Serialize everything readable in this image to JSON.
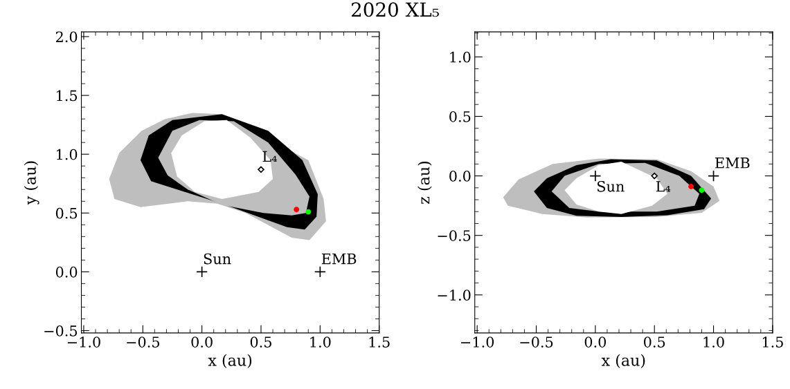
{
  "chart_data": [
    {
      "type": "area",
      "title": "2020 XL₅",
      "xlabel": "x (au)",
      "ylabel": "y (au)",
      "xlim": [
        -1.02,
        1.5
      ],
      "ylim": [
        -0.52,
        2.04
      ],
      "xticks": [
        {
          "value": -1.0,
          "label": "−1.0"
        },
        {
          "value": -0.5,
          "label": "−0.5"
        },
        {
          "value": 0.0,
          "label": "0.0"
        },
        {
          "value": 0.5,
          "label": "0.5"
        },
        {
          "value": 1.0,
          "label": "1.0"
        },
        {
          "value": 1.5,
          "label": "1.5"
        }
      ],
      "yticks": [
        {
          "value": -0.5,
          "label": "−0.5"
        },
        {
          "value": 0.0,
          "label": "0.0"
        },
        {
          "value": 0.5,
          "label": "0.5"
        },
        {
          "value": 1.0,
          "label": "1.0"
        },
        {
          "value": 1.5,
          "label": "1.5"
        },
        {
          "value": 2.0,
          "label": "2.0"
        }
      ],
      "grid": false,
      "series": [
        {
          "color": "#bebebe",
          "x": [
            -0.785,
            -0.7,
            -0.51,
            -0.31,
            -0.08,
            0.17,
            0.9,
            1.03,
            1.05,
            0.91,
            0.76,
            0.37,
            0.13,
            -0.12,
            -0.52,
            -0.74
          ],
          "values": [
            0.79,
            1.01,
            1.2,
            1.3,
            1.35,
            1.34,
            0.95,
            0.62,
            0.43,
            0.27,
            0.29,
            0.5,
            0.58,
            0.6,
            0.55,
            0.62
          ]
        },
        {
          "color": "#000000",
          "x": [
            -0.52,
            -0.45,
            -0.25,
            0.17,
            0.56,
            0.85,
            0.98,
            0.97,
            0.87,
            0.72,
            0.17,
            -0.21,
            -0.43
          ],
          "values": [
            0.95,
            1.16,
            1.29,
            1.34,
            1.2,
            0.95,
            0.66,
            0.47,
            0.36,
            0.38,
            0.58,
            0.7,
            0.77
          ]
        },
        {
          "color": "#bebebe",
          "x": [
            -0.37,
            -0.25,
            -0.02,
            0.27,
            0.56,
            0.79,
            0.91,
            0.88,
            0.76,
            0.52,
            0.17,
            -0.12,
            -0.29
          ],
          "values": [
            0.97,
            1.2,
            1.29,
            1.28,
            1.1,
            0.83,
            0.64,
            0.5,
            0.48,
            0.5,
            0.57,
            0.7,
            0.82
          ]
        },
        {
          "color": "#ffffff",
          "x": [
            -0.26,
            -0.17,
            0.02,
            0.21,
            0.41,
            0.58,
            0.6,
            0.48,
            0.17,
            -0.06,
            -0.21
          ],
          "values": [
            1.01,
            1.16,
            1.28,
            1.29,
            1.14,
            0.95,
            0.79,
            0.68,
            0.62,
            0.68,
            0.81
          ]
        },
        {
          "type": "scatter",
          "marker": "cross",
          "color": "#000000",
          "x": [
            0.0
          ],
          "values": [
            0.0
          ]
        },
        {
          "type": "scatter",
          "marker": "cross",
          "color": "#000000",
          "x": [
            1.0
          ],
          "values": [
            0.0
          ]
        },
        {
          "type": "scatter",
          "marker": "diamond",
          "color": "#000000",
          "x": [
            0.5
          ],
          "values": [
            0.87
          ]
        },
        {
          "type": "scatter",
          "marker": "circle",
          "color": "#ff0000",
          "x": [
            0.8
          ],
          "values": [
            0.53
          ]
        },
        {
          "type": "scatter",
          "marker": "circle",
          "color": "#00ff00",
          "x": [
            0.9
          ],
          "values": [
            0.51
          ]
        }
      ],
      "annotations": [
        {
          "text": "Sun",
          "x": 0.0,
          "y": 0.0
        },
        {
          "text": "EMB",
          "x": 1.0,
          "y": 0.0
        },
        {
          "text": "L₄",
          "x": 0.5,
          "y": 0.87
        }
      ]
    },
    {
      "type": "area",
      "xlabel": "x (au)",
      "ylabel": "z (au)",
      "xlim": [
        -1.02,
        1.5
      ],
      "ylim": [
        -1.32,
        1.21
      ],
      "xticks": [
        {
          "value": -1.0,
          "label": "−1.0"
        },
        {
          "value": -0.5,
          "label": "−0.5"
        },
        {
          "value": 0.0,
          "label": "0.0"
        },
        {
          "value": 0.5,
          "label": "0.5"
        },
        {
          "value": 1.0,
          "label": "1.0"
        },
        {
          "value": 1.5,
          "label": "1.5"
        }
      ],
      "yticks": [
        {
          "value": -1.0,
          "label": "−1.0"
        },
        {
          "value": -0.5,
          "label": "−0.5"
        },
        {
          "value": 0.0,
          "label": "0.0"
        },
        {
          "value": 0.5,
          "label": "0.5"
        },
        {
          "value": 1.0,
          "label": "1.0"
        }
      ],
      "grid": false,
      "series": [
        {
          "color": "#bebebe",
          "x": [
            -0.78,
            -0.65,
            -0.36,
            0.03,
            0.52,
            0.81,
            1.0,
            1.05,
            0.9,
            0.52,
            -0.07,
            -0.45,
            -0.74
          ],
          "values": [
            -0.18,
            -0.03,
            0.1,
            0.145,
            0.14,
            0.04,
            -0.09,
            -0.21,
            -0.31,
            -0.345,
            -0.35,
            -0.32,
            -0.25
          ]
        },
        {
          "color": "#000000",
          "x": [
            -0.52,
            -0.41,
            -0.16,
            0.13,
            0.52,
            0.81,
            0.98,
            0.92,
            0.61,
            0.22,
            -0.16,
            -0.41
          ],
          "values": [
            -0.13,
            -0.02,
            0.09,
            0.14,
            0.13,
            0.0,
            -0.19,
            -0.28,
            -0.33,
            -0.345,
            -0.335,
            -0.27
          ]
        },
        {
          "color": "#bebebe",
          "x": [
            -0.37,
            -0.26,
            0.03,
            0.42,
            0.71,
            0.88,
            0.84,
            0.52,
            0.03,
            -0.22
          ],
          "values": [
            -0.13,
            0.0,
            0.1,
            0.11,
            0.0,
            -0.15,
            -0.25,
            -0.3,
            -0.3,
            -0.27
          ]
        },
        {
          "color": "#ffffff",
          "x": [
            -0.26,
            -0.16,
            0.03,
            0.22,
            0.52,
            0.61,
            0.48,
            0.22,
            0.03,
            -0.16
          ],
          "values": [
            -0.12,
            -0.02,
            0.09,
            0.12,
            -0.02,
            -0.15,
            -0.25,
            -0.32,
            -0.3,
            -0.24
          ]
        },
        {
          "type": "scatter",
          "marker": "cross",
          "color": "#000000",
          "x": [
            0.0
          ],
          "values": [
            0.0
          ]
        },
        {
          "type": "scatter",
          "marker": "cross",
          "color": "#000000",
          "x": [
            1.0
          ],
          "values": [
            0.0
          ]
        },
        {
          "type": "scatter",
          "marker": "diamond",
          "color": "#000000",
          "x": [
            0.5
          ],
          "values": [
            0.0
          ]
        },
        {
          "type": "scatter",
          "marker": "circle",
          "color": "#ff0000",
          "x": [
            0.81
          ],
          "values": [
            -0.09
          ]
        },
        {
          "type": "scatter",
          "marker": "circle",
          "color": "#00ff00",
          "x": [
            0.9
          ],
          "values": [
            -0.12
          ]
        }
      ],
      "annotations": [
        {
          "text": "Sun",
          "x": 0.0,
          "y": 0.0
        },
        {
          "text": "EMB",
          "x": 1.0,
          "y": 0.0
        },
        {
          "text": "L₄",
          "x": 0.5,
          "y": 0.0
        }
      ]
    }
  ]
}
